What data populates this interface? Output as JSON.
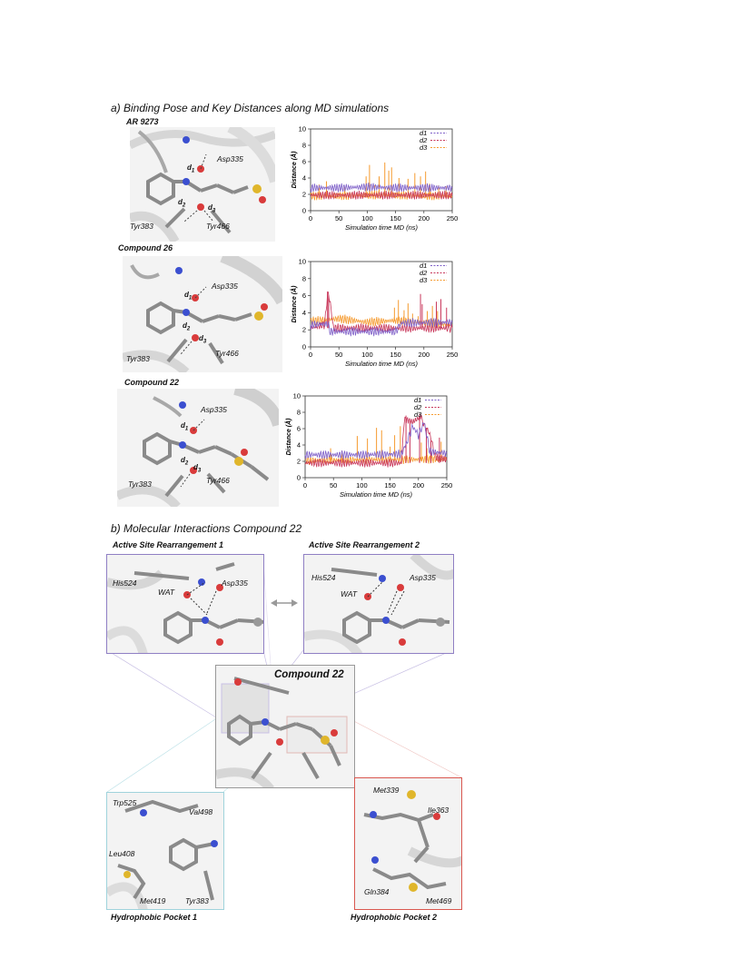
{
  "section_a_title": "a) Binding Pose and Key Distances along MD simulations",
  "section_b_title": "b) Molecular Interactions Compound 22",
  "panels": [
    {
      "compound": "AR 9273",
      "residues": {
        "asp": "Asp335",
        "tyr1": "Tyr383",
        "tyr2": "Tyr466"
      },
      "d1": "d1",
      "d2": "d2",
      "d3": "d3"
    },
    {
      "compound": "Compound 26",
      "residues": {
        "asp": "Asp335",
        "tyr1": "Tyr383",
        "tyr2": "Tyr466"
      },
      "d1": "d1",
      "d2": "d2",
      "d3": "d3"
    },
    {
      "compound": "Compound 22",
      "residues": {
        "asp": "Asp335",
        "tyr1": "Tyr383",
        "tyr2": "Tyr466"
      },
      "d1": "d1",
      "d2": "d2",
      "d3": "d3"
    }
  ],
  "chart_data": [
    {
      "type": "line",
      "xlabel": "Simulation time MD (ns)",
      "ylabel": "Distance (Å)",
      "xlim": [
        0,
        250
      ],
      "ylim": [
        0,
        10
      ],
      "x_ticks": [
        "0",
        "50",
        "100",
        "150",
        "200",
        "250"
      ],
      "y_ticks": [
        "0",
        "2",
        "4",
        "6",
        "8",
        "10"
      ],
      "legend_position": "top-right",
      "series": [
        {
          "name": "d1",
          "color": "#7d5ec8",
          "values": [
            [
              0,
              2.8
            ],
            [
              50,
              2.8
            ],
            [
              100,
              2.9
            ],
            [
              150,
              2.8
            ],
            [
              200,
              2.8
            ],
            [
              250,
              2.8
            ]
          ]
        },
        {
          "name": "d2",
          "color": "#c8365a",
          "values": [
            [
              0,
              1.9
            ],
            [
              50,
              1.9
            ],
            [
              100,
              1.9
            ],
            [
              150,
              1.9
            ],
            [
              200,
              1.9
            ],
            [
              250,
              1.9
            ]
          ]
        },
        {
          "name": "d3",
          "color": "#f59a2e",
          "values": [
            [
              0,
              1.8
            ],
            [
              50,
              1.8
            ],
            [
              100,
              1.9
            ],
            [
              150,
              1.9
            ],
            [
              200,
              1.8
            ],
            [
              250,
              1.8
            ]
          ],
          "spikes": [
            [
              15,
              3.2
            ],
            [
              28,
              3.6
            ],
            [
              60,
              2.9
            ],
            [
              98,
              4.2
            ],
            [
              104,
              5.6
            ],
            [
              113,
              3.1
            ],
            [
              121,
              4.2
            ],
            [
              131,
              5.9
            ],
            [
              138,
              4.9
            ],
            [
              143,
              5.3
            ],
            [
              156,
              4.0
            ],
            [
              172,
              3.9
            ],
            [
              184,
              4.6
            ],
            [
              194,
              4.2
            ],
            [
              203,
              4.8
            ],
            [
              210,
              3.3
            ],
            [
              226,
              3.1
            ],
            [
              239,
              3.0
            ]
          ]
        }
      ]
    },
    {
      "type": "line",
      "xlabel": "Simulation time MD (ns)",
      "ylabel": "Distance (Å)",
      "xlim": [
        0,
        250
      ],
      "ylim": [
        0,
        10
      ],
      "x_ticks": [
        "0",
        "50",
        "100",
        "150",
        "200",
        "250"
      ],
      "y_ticks": [
        "0",
        "2",
        "4",
        "6",
        "8",
        "10"
      ],
      "legend_position": "top-right",
      "series": [
        {
          "name": "d1",
          "color": "#7d5ec8",
          "values": [
            [
              0,
              2.6
            ],
            [
              30,
              2.7
            ],
            [
              35,
              1.8
            ],
            [
              150,
              1.8
            ],
            [
              160,
              2.8
            ],
            [
              250,
              2.9
            ]
          ]
        },
        {
          "name": "d2",
          "color": "#c8365a",
          "values": [
            [
              0,
              2.2
            ],
            [
              25,
              2.6
            ],
            [
              30,
              6.3
            ],
            [
              35,
              5.2
            ],
            [
              40,
              2.2
            ],
            [
              240,
              2.2
            ],
            [
              250,
              2.2
            ]
          ],
          "spikes": [
            [
              30,
              6.5
            ],
            [
              32,
              6.0
            ],
            [
              194,
              6.2
            ],
            [
              197,
              5.0
            ],
            [
              222,
              5.3
            ],
            [
              230,
              5.6
            ],
            [
              240,
              4.6
            ]
          ]
        },
        {
          "name": "d3",
          "color": "#f59a2e",
          "values": [
            [
              0,
              3.0
            ],
            [
              50,
              3.3
            ],
            [
              100,
              2.9
            ],
            [
              150,
              3.1
            ],
            [
              200,
              2.8
            ],
            [
              250,
              2.6
            ]
          ],
          "spikes": [
            [
              148,
              4.6
            ],
            [
              155,
              5.5
            ],
            [
              165,
              4.3
            ],
            [
              172,
              5.1
            ],
            [
              180,
              3.9
            ],
            [
              190,
              3.6
            ],
            [
              206,
              4.2
            ],
            [
              215,
              4.8
            ],
            [
              224,
              4.2
            ]
          ]
        }
      ]
    },
    {
      "type": "line",
      "xlabel": "Simulation time MD (ns)",
      "ylabel": "Distance (Å)",
      "xlim": [
        0,
        250
      ],
      "ylim": [
        0,
        10
      ],
      "x_ticks": [
        "0",
        "50",
        "100",
        "150",
        "200",
        "250"
      ],
      "y_ticks": [
        "0",
        "2",
        "4",
        "6",
        "8",
        "10"
      ],
      "legend_position": "top-right",
      "series": [
        {
          "name": "d1",
          "color": "#7d5ec8",
          "values": [
            [
              0,
              2.8
            ],
            [
              100,
              2.8
            ],
            [
              170,
              2.9
            ],
            [
              180,
              4.4
            ],
            [
              190,
              6.3
            ],
            [
              200,
              5.2
            ],
            [
              210,
              6.8
            ],
            [
              220,
              3.2
            ],
            [
              250,
              3.0
            ]
          ]
        },
        {
          "name": "d2",
          "color": "#c8365a",
          "values": [
            [
              0,
              1.8
            ],
            [
              170,
              1.8
            ],
            [
              175,
              7.2
            ],
            [
              190,
              6.8
            ],
            [
              205,
              7.5
            ],
            [
              210,
              6.3
            ],
            [
              220,
              5.4
            ],
            [
              230,
              2.5
            ],
            [
              250,
              2.2
            ]
          ],
          "spikes": [
            [
              178,
              7.6
            ],
            [
              185,
              6.9
            ],
            [
              202,
              7.8
            ],
            [
              214,
              6.1
            ],
            [
              222,
              4.5
            ],
            [
              237,
              4.9
            ]
          ]
        },
        {
          "name": "d3",
          "color": "#f59a2e",
          "values": [
            [
              0,
              2.1
            ],
            [
              100,
              2.2
            ],
            [
              170,
              2.2
            ],
            [
              250,
              2.3
            ]
          ],
          "spikes": [
            [
              45,
              3.6
            ],
            [
              65,
              3.3
            ],
            [
              92,
              5.1
            ],
            [
              110,
              4.8
            ],
            [
              126,
              6.1
            ],
            [
              135,
              5.8
            ],
            [
              150,
              3.8
            ],
            [
              158,
              5.2
            ],
            [
              168,
              6.3
            ],
            [
              205,
              4.3
            ],
            [
              215,
              3.6
            ],
            [
              240,
              4.4
            ]
          ]
        }
      ]
    }
  ],
  "interactions": {
    "rearr1": {
      "title": "Active Site Rearrangement 1",
      "his": "His524",
      "asp": "Asp335",
      "wat": "WAT"
    },
    "rearr2": {
      "title": "Active Site Rearrangement 2",
      "his": "His524",
      "asp": "Asp335",
      "wat": "WAT"
    },
    "center_title": "Compound 22",
    "pocket1": {
      "title": "Hydrophobic Pocket 1",
      "trp": "Trp525",
      "val": "Val498",
      "leu": "Leu408",
      "met": "Met419",
      "tyr": "Tyr383"
    },
    "pocket2": {
      "title": "Hydrophobic Pocket 2",
      "met339": "Met339",
      "ile": "Ile363",
      "gln": "Gln384",
      "met469": "Met469"
    },
    "colors": {
      "rearr": "#8f7fc4",
      "pocket1": "#9fd3dc",
      "pocket2": "#d9574f"
    }
  }
}
